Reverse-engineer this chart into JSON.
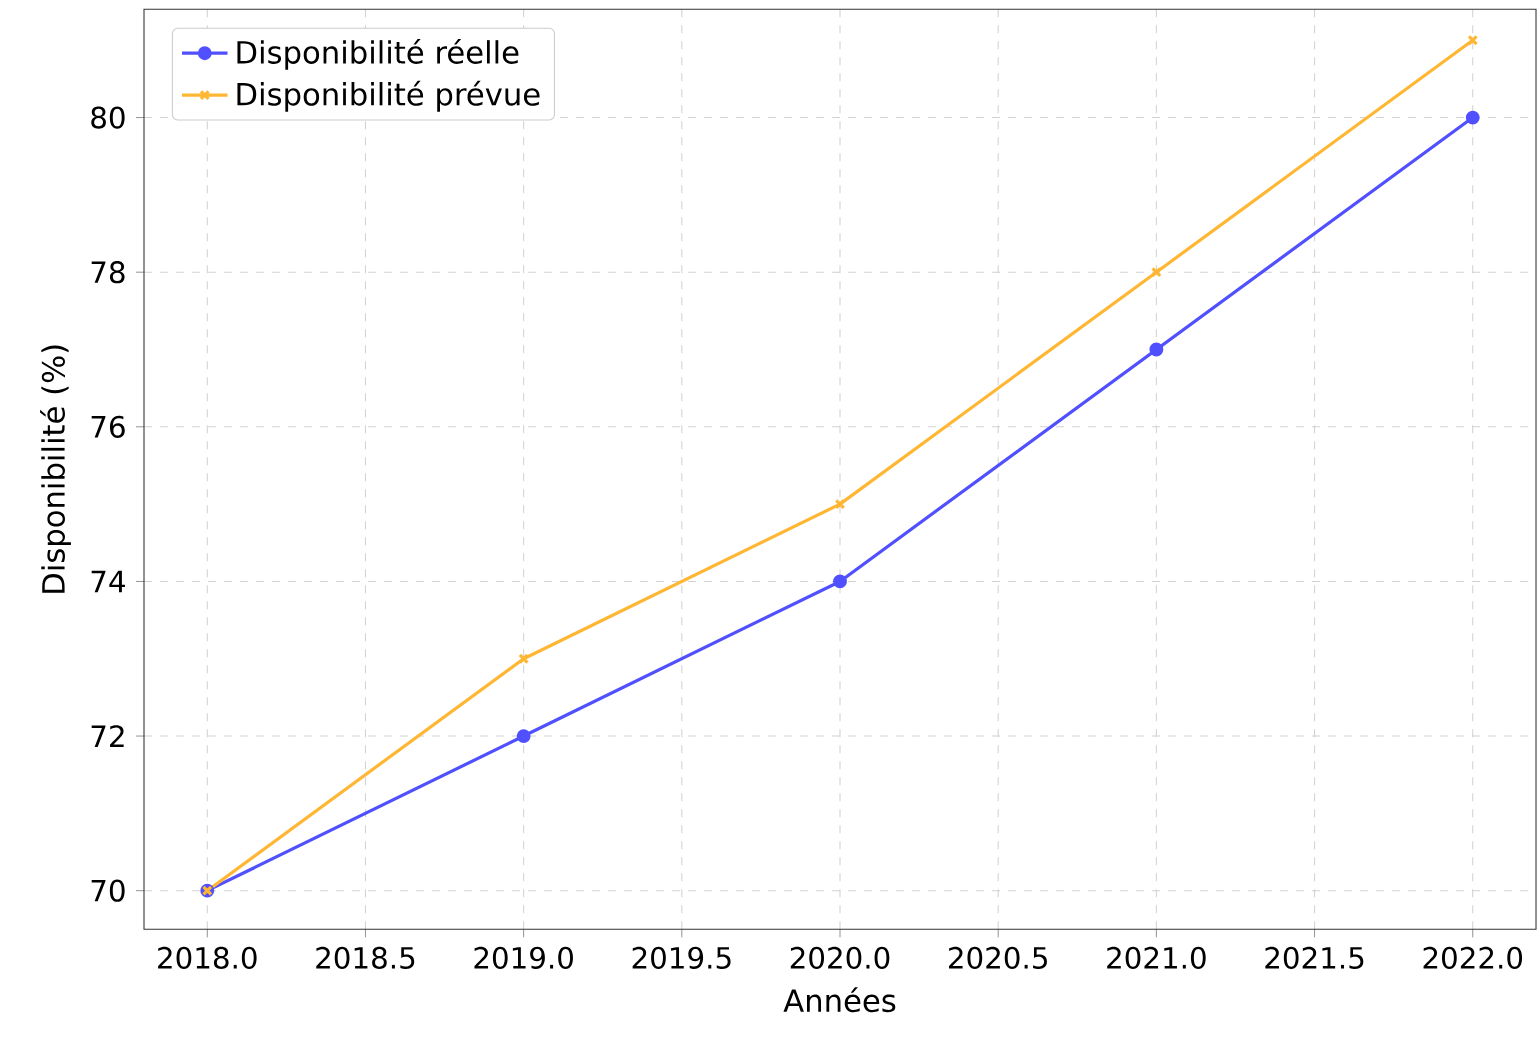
{
  "chart_data": {
    "type": "line",
    "xlabel": "Années",
    "ylabel": "Disponibilité (%)",
    "x": [
      2018,
      2019,
      2020,
      2021,
      2022
    ],
    "series": [
      {
        "name": "Disponibilité réelle",
        "color": "#5050ff",
        "marker": "circle",
        "values": [
          70,
          72,
          74,
          77,
          80
        ]
      },
      {
        "name": "Disponibilité prévue",
        "color": "#ffb733",
        "marker": "cross",
        "values": [
          70,
          73,
          75,
          78,
          81
        ]
      }
    ],
    "xlim": [
      2017.8,
      2022.2
    ],
    "ylim": [
      69.5,
      81.4
    ],
    "xticks": [
      {
        "value": 2018,
        "label": "2018.0"
      },
      {
        "value": 2018.5,
        "label": "2018.5"
      },
      {
        "value": 2019,
        "label": "2019.0"
      },
      {
        "value": 2019.5,
        "label": "2019.5"
      },
      {
        "value": 2020,
        "label": "2020.0"
      },
      {
        "value": 2020.5,
        "label": "2020.5"
      },
      {
        "value": 2021,
        "label": "2021.0"
      },
      {
        "value": 2021.5,
        "label": "2021.5"
      },
      {
        "value": 2022,
        "label": "2022.0"
      }
    ],
    "yticks": [
      70,
      72,
      74,
      76,
      78,
      80
    ],
    "grid": true,
    "legend": "top left",
    "line_style": "solid"
  }
}
